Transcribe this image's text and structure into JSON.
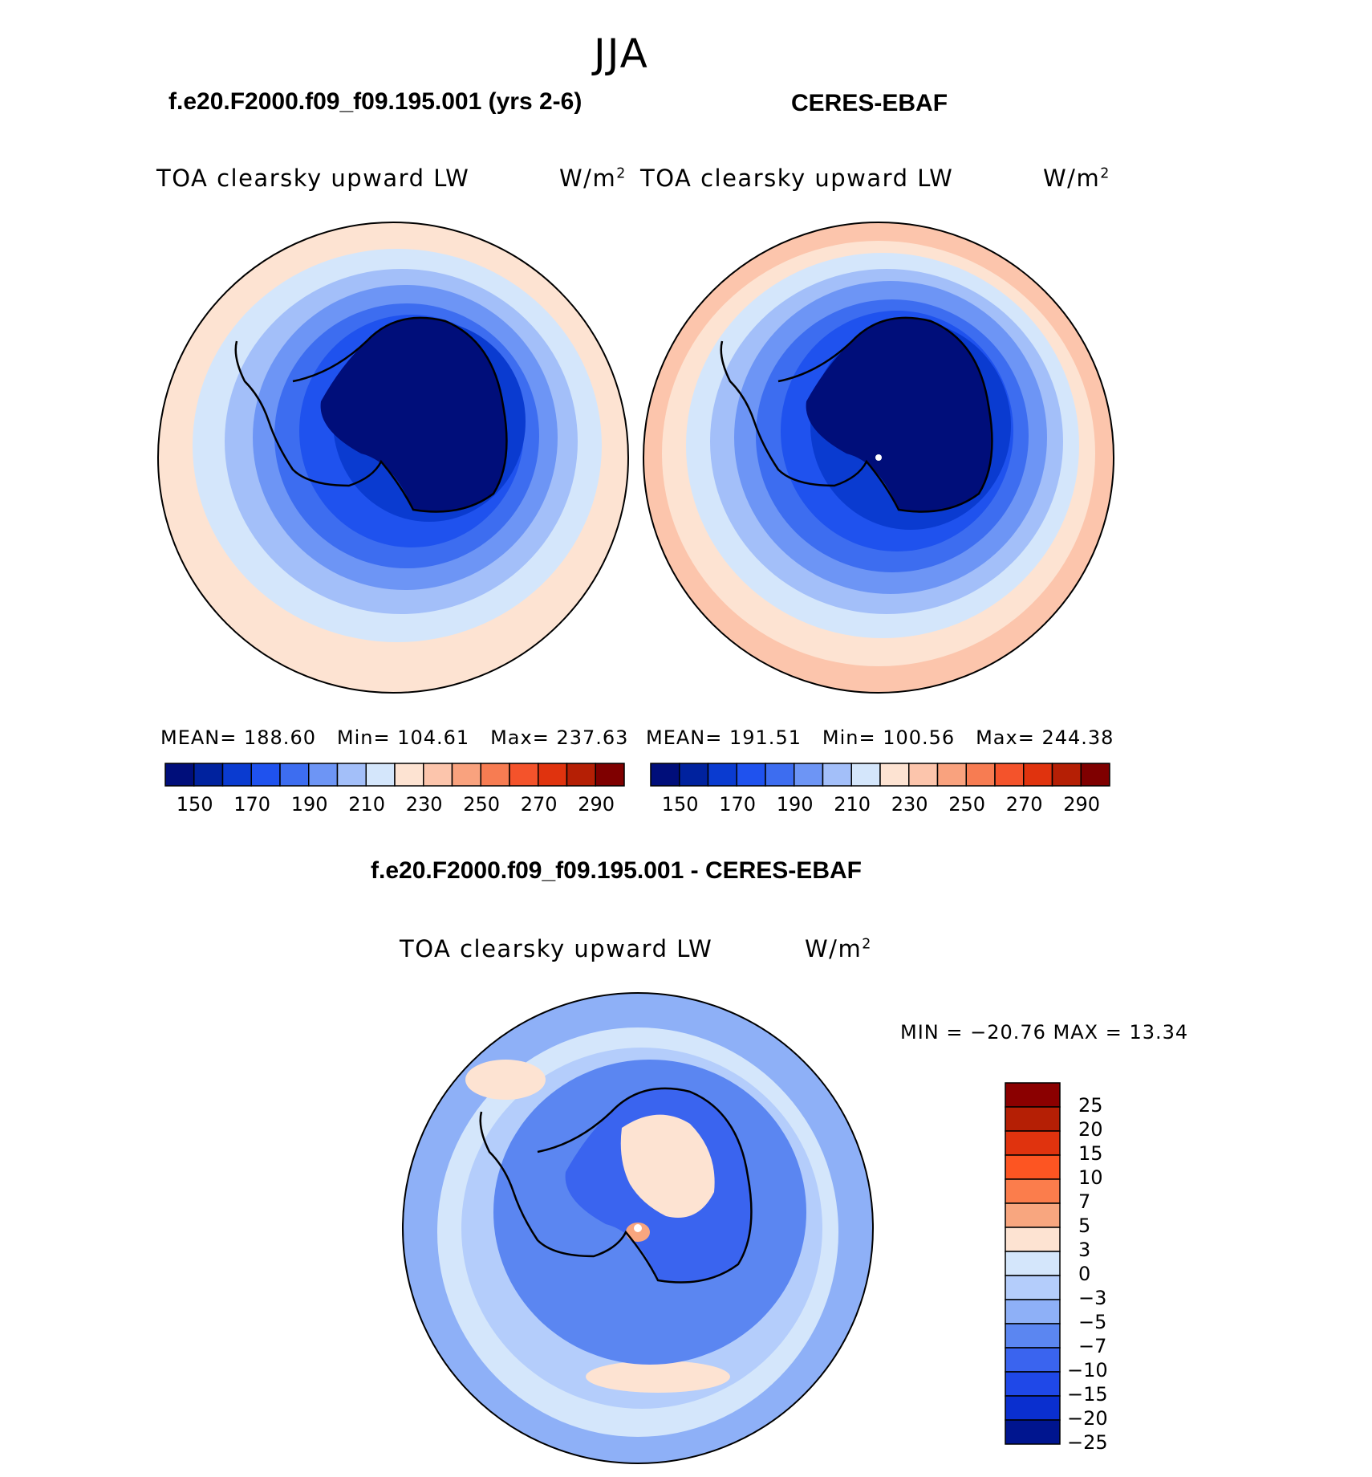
{
  "main_title": "JJA",
  "panels": [
    {
      "title": "f.e20.F2000.f09_f09.195.001 (yrs 2-6)",
      "var_label": "TOA clearsky upward LW",
      "units": "W/m",
      "units_sup": "2",
      "stats": {
        "mean_label": "MEAN=",
        "mean": "188.60",
        "min_label": "Min=",
        "min": "104.61",
        "max_label": "Max=",
        "max": "237.63"
      },
      "colorbar": {
        "colors": [
          "#000e7a",
          "#00229e",
          "#0a3bd0",
          "#1f52ee",
          "#3d6df0",
          "#6d95f5",
          "#a3bff9",
          "#d4e6fb",
          "#fde3d2",
          "#fcc5ac",
          "#f9a27e",
          "#f77c52",
          "#f4532b",
          "#e0330e",
          "#b51f05",
          "#7f0000"
        ],
        "ticks": [
          "150",
          "170",
          "190",
          "210",
          "230",
          "250",
          "270",
          "290"
        ]
      }
    },
    {
      "title": "CERES-EBAF",
      "var_label": "TOA clearsky upward LW",
      "units": "W/m",
      "units_sup": "2",
      "stats": {
        "mean_label": "MEAN=",
        "mean": "191.51",
        "min_label": "Min=",
        "min": "100.56",
        "max_label": "Max=",
        "max": "244.38"
      },
      "colorbar": {
        "colors": [
          "#000e7a",
          "#00229e",
          "#0a3bd0",
          "#1f52ee",
          "#3d6df0",
          "#6d95f5",
          "#a3bff9",
          "#d4e6fb",
          "#fde3d2",
          "#fcc5ac",
          "#f9a27e",
          "#f77c52",
          "#f4532b",
          "#e0330e",
          "#b51f05",
          "#7f0000"
        ],
        "ticks": [
          "150",
          "170",
          "190",
          "210",
          "230",
          "250",
          "270",
          "290"
        ]
      }
    }
  ],
  "diff_panel": {
    "title": "f.e20.F2000.f09_f09.195.001 - CERES-EBAF",
    "var_label": "TOA clearsky upward LW",
    "units": "W/m",
    "units_sup": "2",
    "minmax": "MIN = −20.76 MAX =   13.34",
    "colorbar": {
      "colors_top_to_bottom": [
        "#8b0000",
        "#b51f05",
        "#e0330e",
        "#fd5522",
        "#fb7d4c",
        "#f8a67f",
        "#fde3d2",
        "#d4e6fb",
        "#b4cdfb",
        "#8eb0f7",
        "#5b86f1",
        "#3a64ef",
        "#1f48e8",
        "#0a2fcf",
        "#00158f"
      ],
      "ticks": [
        "25",
        "20",
        "15",
        "10",
        "7",
        "5",
        "3",
        "0",
        "−3",
        "−5",
        "−7",
        "−10",
        "−15",
        "−20",
        "−25"
      ]
    }
  }
}
